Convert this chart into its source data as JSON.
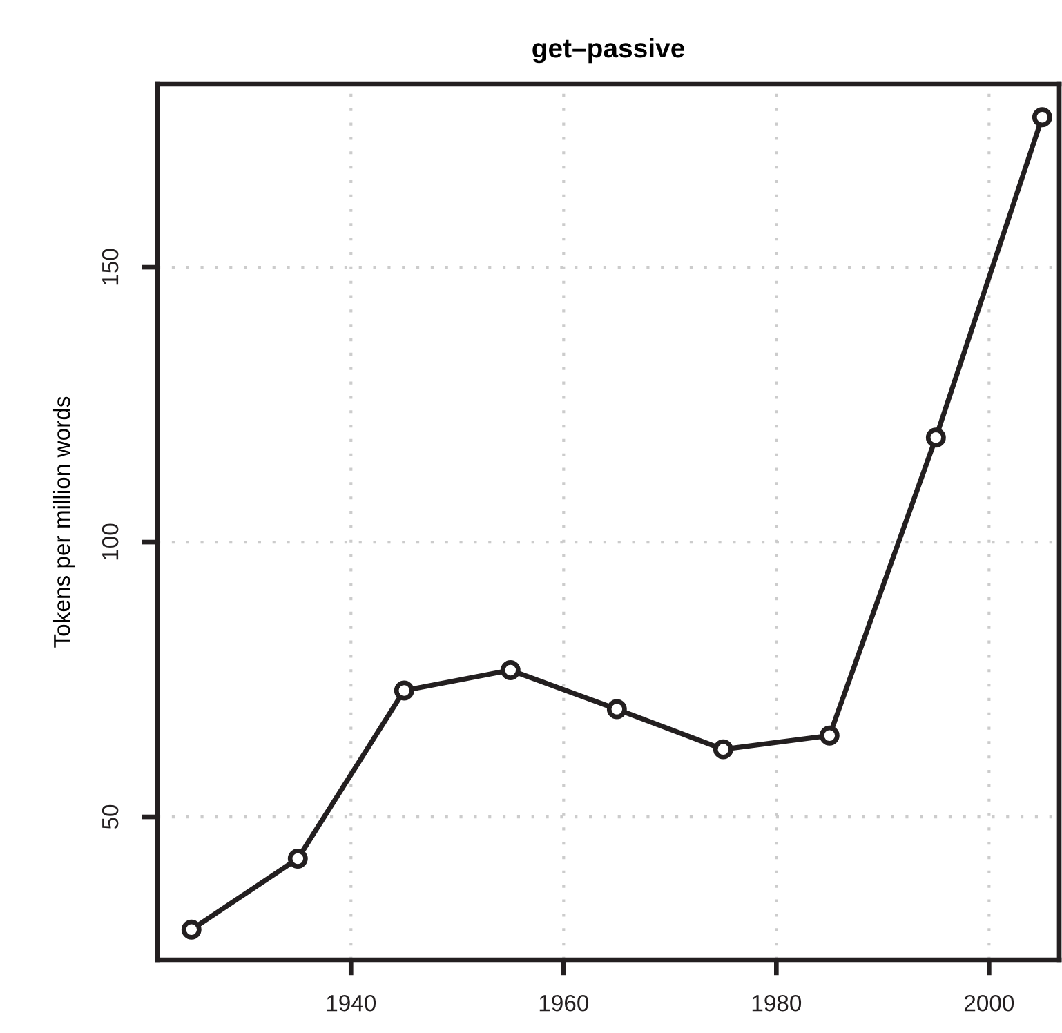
{
  "chart_data": {
    "type": "line",
    "title": "get–passive",
    "ylabel": "Tokens per million words",
    "x": [
      1925,
      1935,
      1945,
      1955,
      1965,
      1975,
      1985,
      1995,
      2005
    ],
    "series": [
      {
        "color": "#231f20",
        "values": [
          29.5,
          42.4,
          73.0,
          76.7,
          69.6,
          62.3,
          64.8,
          119.0,
          177.3
        ]
      }
    ],
    "xlim": [
      1921.8,
      2006.6
    ],
    "ylim": [
      24,
      183.3
    ],
    "xticks": [
      1940,
      1960,
      1980,
      2000
    ],
    "yticks": [
      50,
      100,
      150
    ],
    "grid": true,
    "marker": "circle",
    "line_style": "solid",
    "legend": false
  }
}
